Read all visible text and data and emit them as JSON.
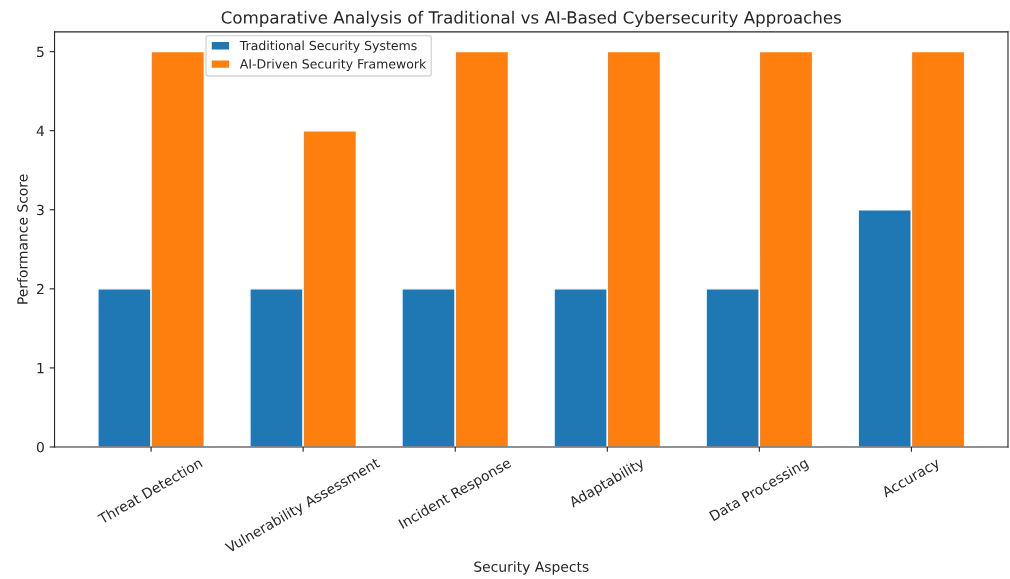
{
  "chart_data": {
    "type": "bar",
    "title": "Comparative Analysis of Traditional vs AI-Based Cybersecurity Approaches",
    "xlabel": "Security Aspects",
    "ylabel": "Performance Score",
    "categories": [
      "Threat Detection",
      "Vulnerability Assessment",
      "Incident Response",
      "Adaptability",
      "Data Processing",
      "Accuracy"
    ],
    "series": [
      {
        "name": "Traditional Security Systems",
        "color": "#1f77b4",
        "values": [
          2,
          2,
          2,
          2,
          2,
          3
        ]
      },
      {
        "name": "AI-Driven Security Framework",
        "color": "#ff7f0e",
        "values": [
          5,
          4,
          5,
          5,
          5,
          5
        ]
      }
    ],
    "ylim": [
      0,
      5.25
    ],
    "yticks": [
      0,
      1,
      2,
      3,
      4,
      5
    ],
    "grid": false,
    "legend": "top left"
  }
}
